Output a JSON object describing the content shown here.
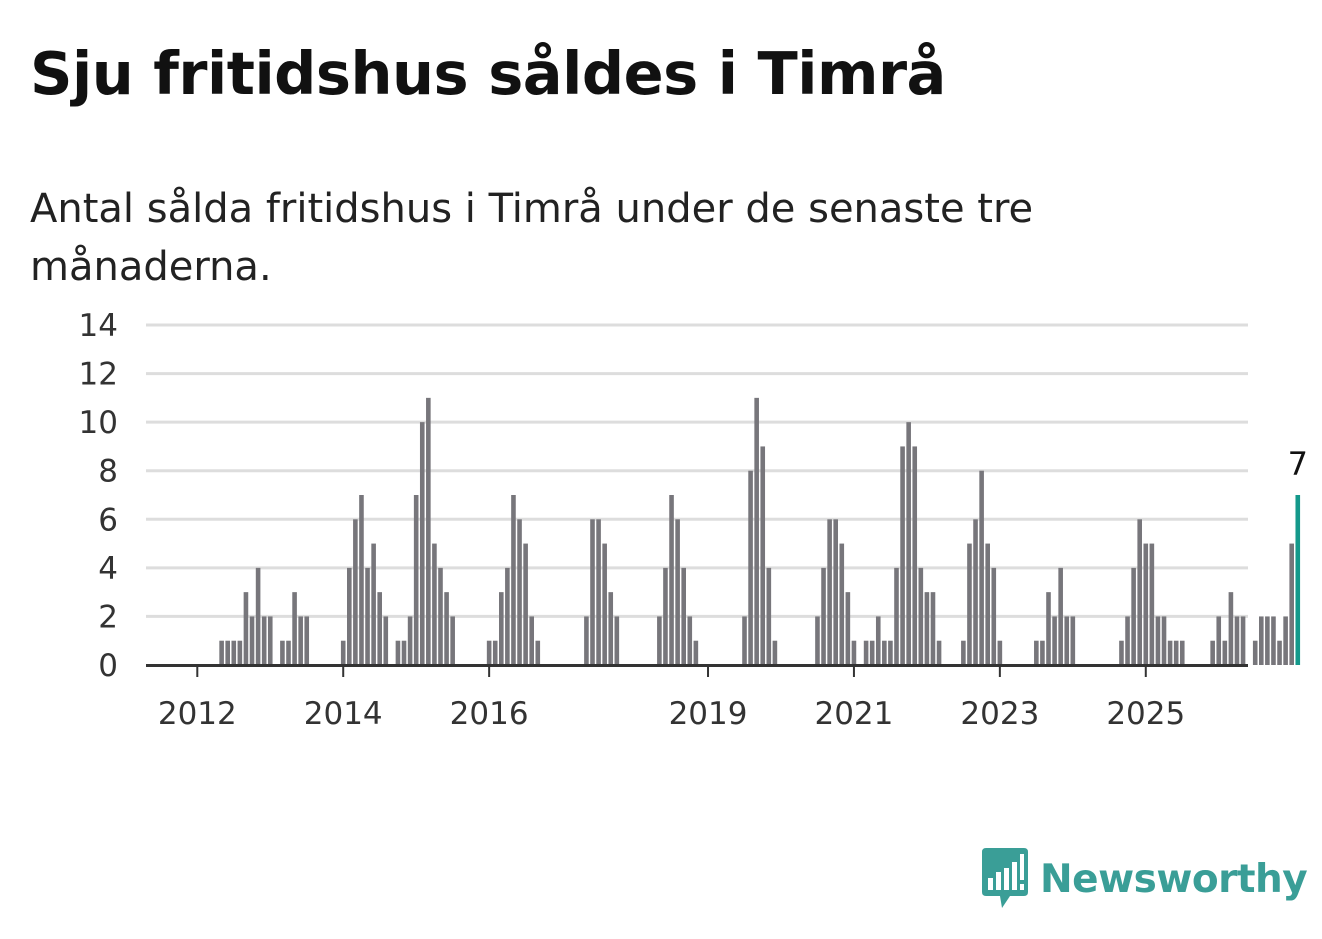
{
  "title": "Sju fritidshus såldes i Timrå",
  "subtitle": "Antal sålda fritidshus i Timrå under de senaste tre månaderna.",
  "brand": {
    "name": "Newsworthy",
    "color": "#3a9e97"
  },
  "chart_data": {
    "type": "bar",
    "title": "Sju fritidshus såldes i Timrå",
    "subtitle": "Antal sålda fritidshus i Timrå under de senaste tre månaderna.",
    "xlabel": "",
    "ylabel": "",
    "ylim": [
      0,
      14
    ],
    "yticks": [
      0,
      2,
      4,
      6,
      8,
      10,
      12,
      14
    ],
    "xticks": [
      "2012",
      "2014",
      "2016",
      "2019",
      "2021",
      "2023",
      "2025"
    ],
    "grid": true,
    "legend": "none",
    "bar_color": "#77767b",
    "highlight_color": "#14998b",
    "series": [
      {
        "values": [
          0,
          0,
          0,
          0,
          1,
          1,
          1,
          1,
          3,
          2,
          4,
          2,
          2,
          0,
          1,
          1,
          3,
          2,
          2,
          0,
          0,
          0,
          0,
          0,
          1,
          4,
          6,
          7,
          4,
          5,
          3,
          2,
          0,
          1,
          1,
          2,
          7,
          10,
          11,
          5,
          4,
          3,
          2,
          0,
          0,
          0,
          0,
          0,
          1,
          1,
          3,
          4,
          7,
          6,
          5,
          2,
          1,
          0,
          0,
          0,
          0,
          0,
          0,
          0,
          2,
          6,
          6,
          5,
          3,
          2,
          0,
          0,
          0,
          0,
          0,
          0,
          2,
          4,
          7,
          6,
          4,
          2,
          1,
          0,
          0,
          0,
          0,
          0,
          0,
          0,
          2,
          8,
          11,
          9,
          4,
          1,
          0,
          0,
          0,
          0,
          0,
          0,
          2,
          4,
          6,
          6,
          5,
          3,
          1,
          0,
          1,
          1,
          2,
          1,
          1,
          4,
          9,
          10,
          9,
          4,
          3,
          3,
          1,
          0,
          0,
          0,
          1,
          5,
          6,
          8,
          5,
          4,
          1,
          0,
          0,
          0,
          0,
          0,
          1,
          1,
          3,
          2,
          4,
          2,
          2,
          0,
          0,
          0,
          0,
          0,
          0,
          0,
          1,
          2,
          4,
          6,
          5,
          5,
          2,
          2,
          1,
          1,
          1,
          0,
          0,
          0,
          0,
          1,
          2,
          1,
          3,
          2,
          2,
          0,
          1,
          2,
          2,
          2,
          1,
          2,
          5,
          7
        ]
      }
    ],
    "annotation": {
      "label": "7"
    }
  }
}
